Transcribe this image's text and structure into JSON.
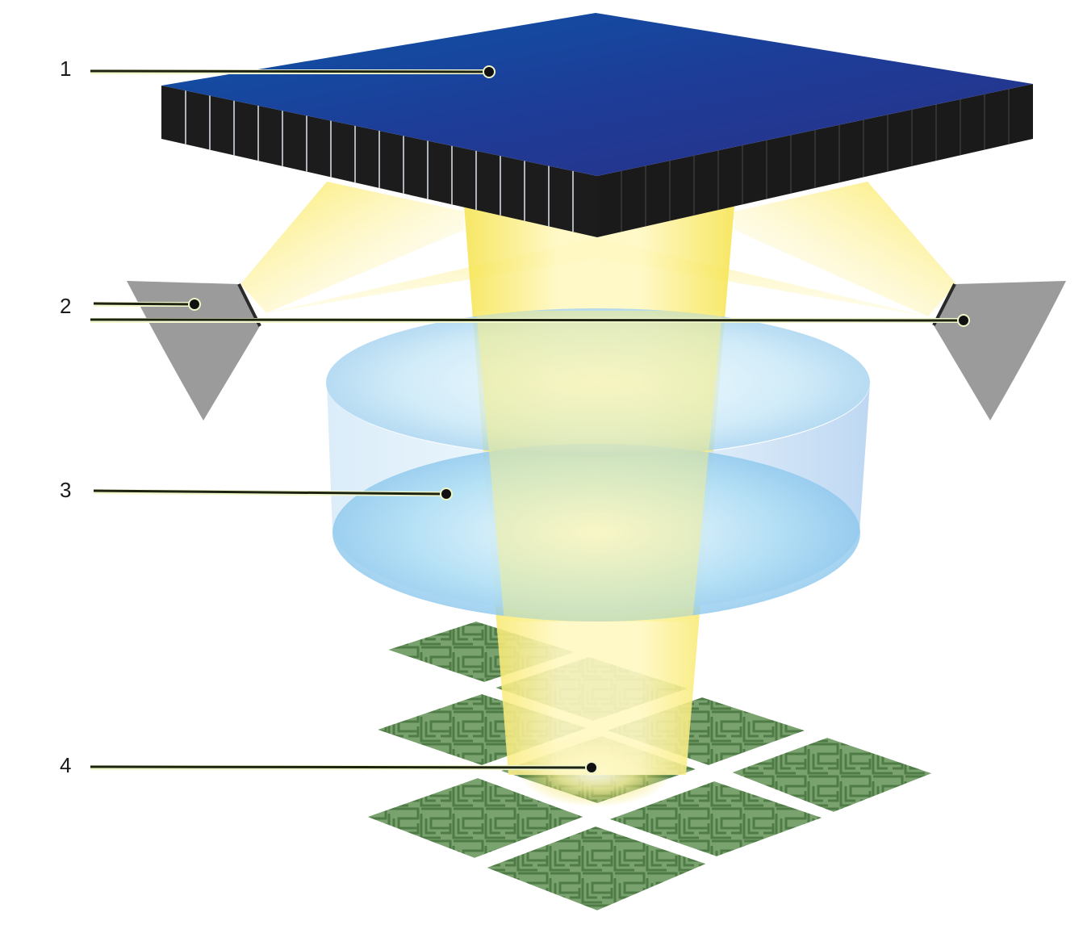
{
  "callouts": [
    {
      "id": "1",
      "label": "1"
    },
    {
      "id": "2",
      "label": "2"
    },
    {
      "id": "3",
      "label": "3"
    },
    {
      "id": "4",
      "label": "4"
    }
  ],
  "colors": {
    "plate_top": "#1d3f99",
    "plate_side": "#1a1a1a",
    "light_beam": "#fbe95a",
    "mirror": "#9b9b9b",
    "lens": "#a9d6f2",
    "maze_tile": "#6f9966",
    "maze_wall": "#4d7a46"
  },
  "icons": {
    "pattern": "maze-pattern-tile"
  }
}
